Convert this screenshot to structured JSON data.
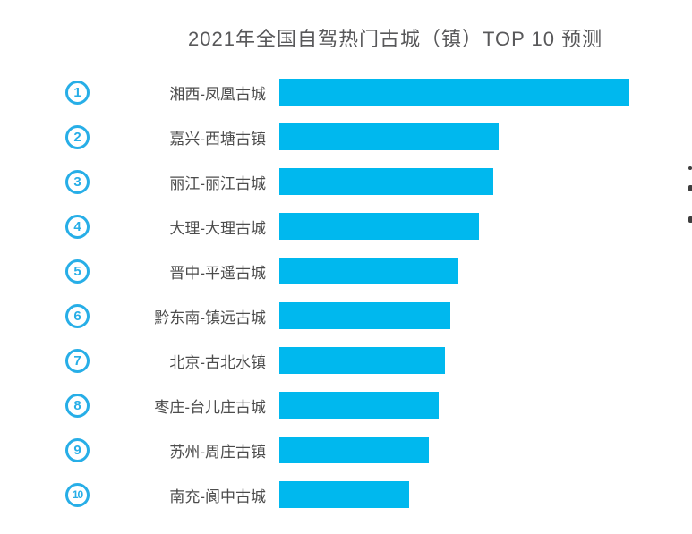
{
  "title": {
    "text": "2021年全国自驾热门古城（镇）TOP 10 预测"
  },
  "chart_data": {
    "type": "bar",
    "orientation": "horizontal",
    "title": "2021年全国自驾热门古城（镇）TOP 10 预测",
    "categories": [
      "湘西-凤凰古城",
      "嘉兴-西塘古镇",
      "丽江-丽江古城",
      "大理-大理古城",
      "晋中-平遥古城",
      "黔东南-镇远古城",
      "北京-古北水镇",
      "枣庄-台儿庄古城",
      "苏州-周庄古镇",
      "南充-阆中古城"
    ],
    "ranks": [
      "1",
      "2",
      "3",
      "4",
      "5",
      "6",
      "7",
      "8",
      "9",
      "10"
    ],
    "values": [
      100,
      62.7,
      61.1,
      57.0,
      51.2,
      48.8,
      47.3,
      45.5,
      42.7,
      37.1
    ],
    "value_note": "no numeric axis or data labels shown; values are relative bar lengths estimated from pixels, max = 100",
    "xlim": [
      0,
      100
    ],
    "legend": "none",
    "gridlines": "left axis line and top plot border only",
    "bar_color": "#00b8ee"
  },
  "colors": {
    "bar": "#00b8ee",
    "rank_circle": "#27aee7",
    "label_text": "#4c4c4c",
    "title_text": "#58585a",
    "grid_line": "#e3e3e3",
    "edge_artifact": "#3e3e3e"
  },
  "edge_artifacts": {
    "marks": [
      {
        "y": 186,
        "w": 4,
        "h": 4
      },
      {
        "y": 207,
        "w": 5,
        "h": 7
      },
      {
        "y": 242,
        "w": 5,
        "h": 7
      }
    ]
  }
}
